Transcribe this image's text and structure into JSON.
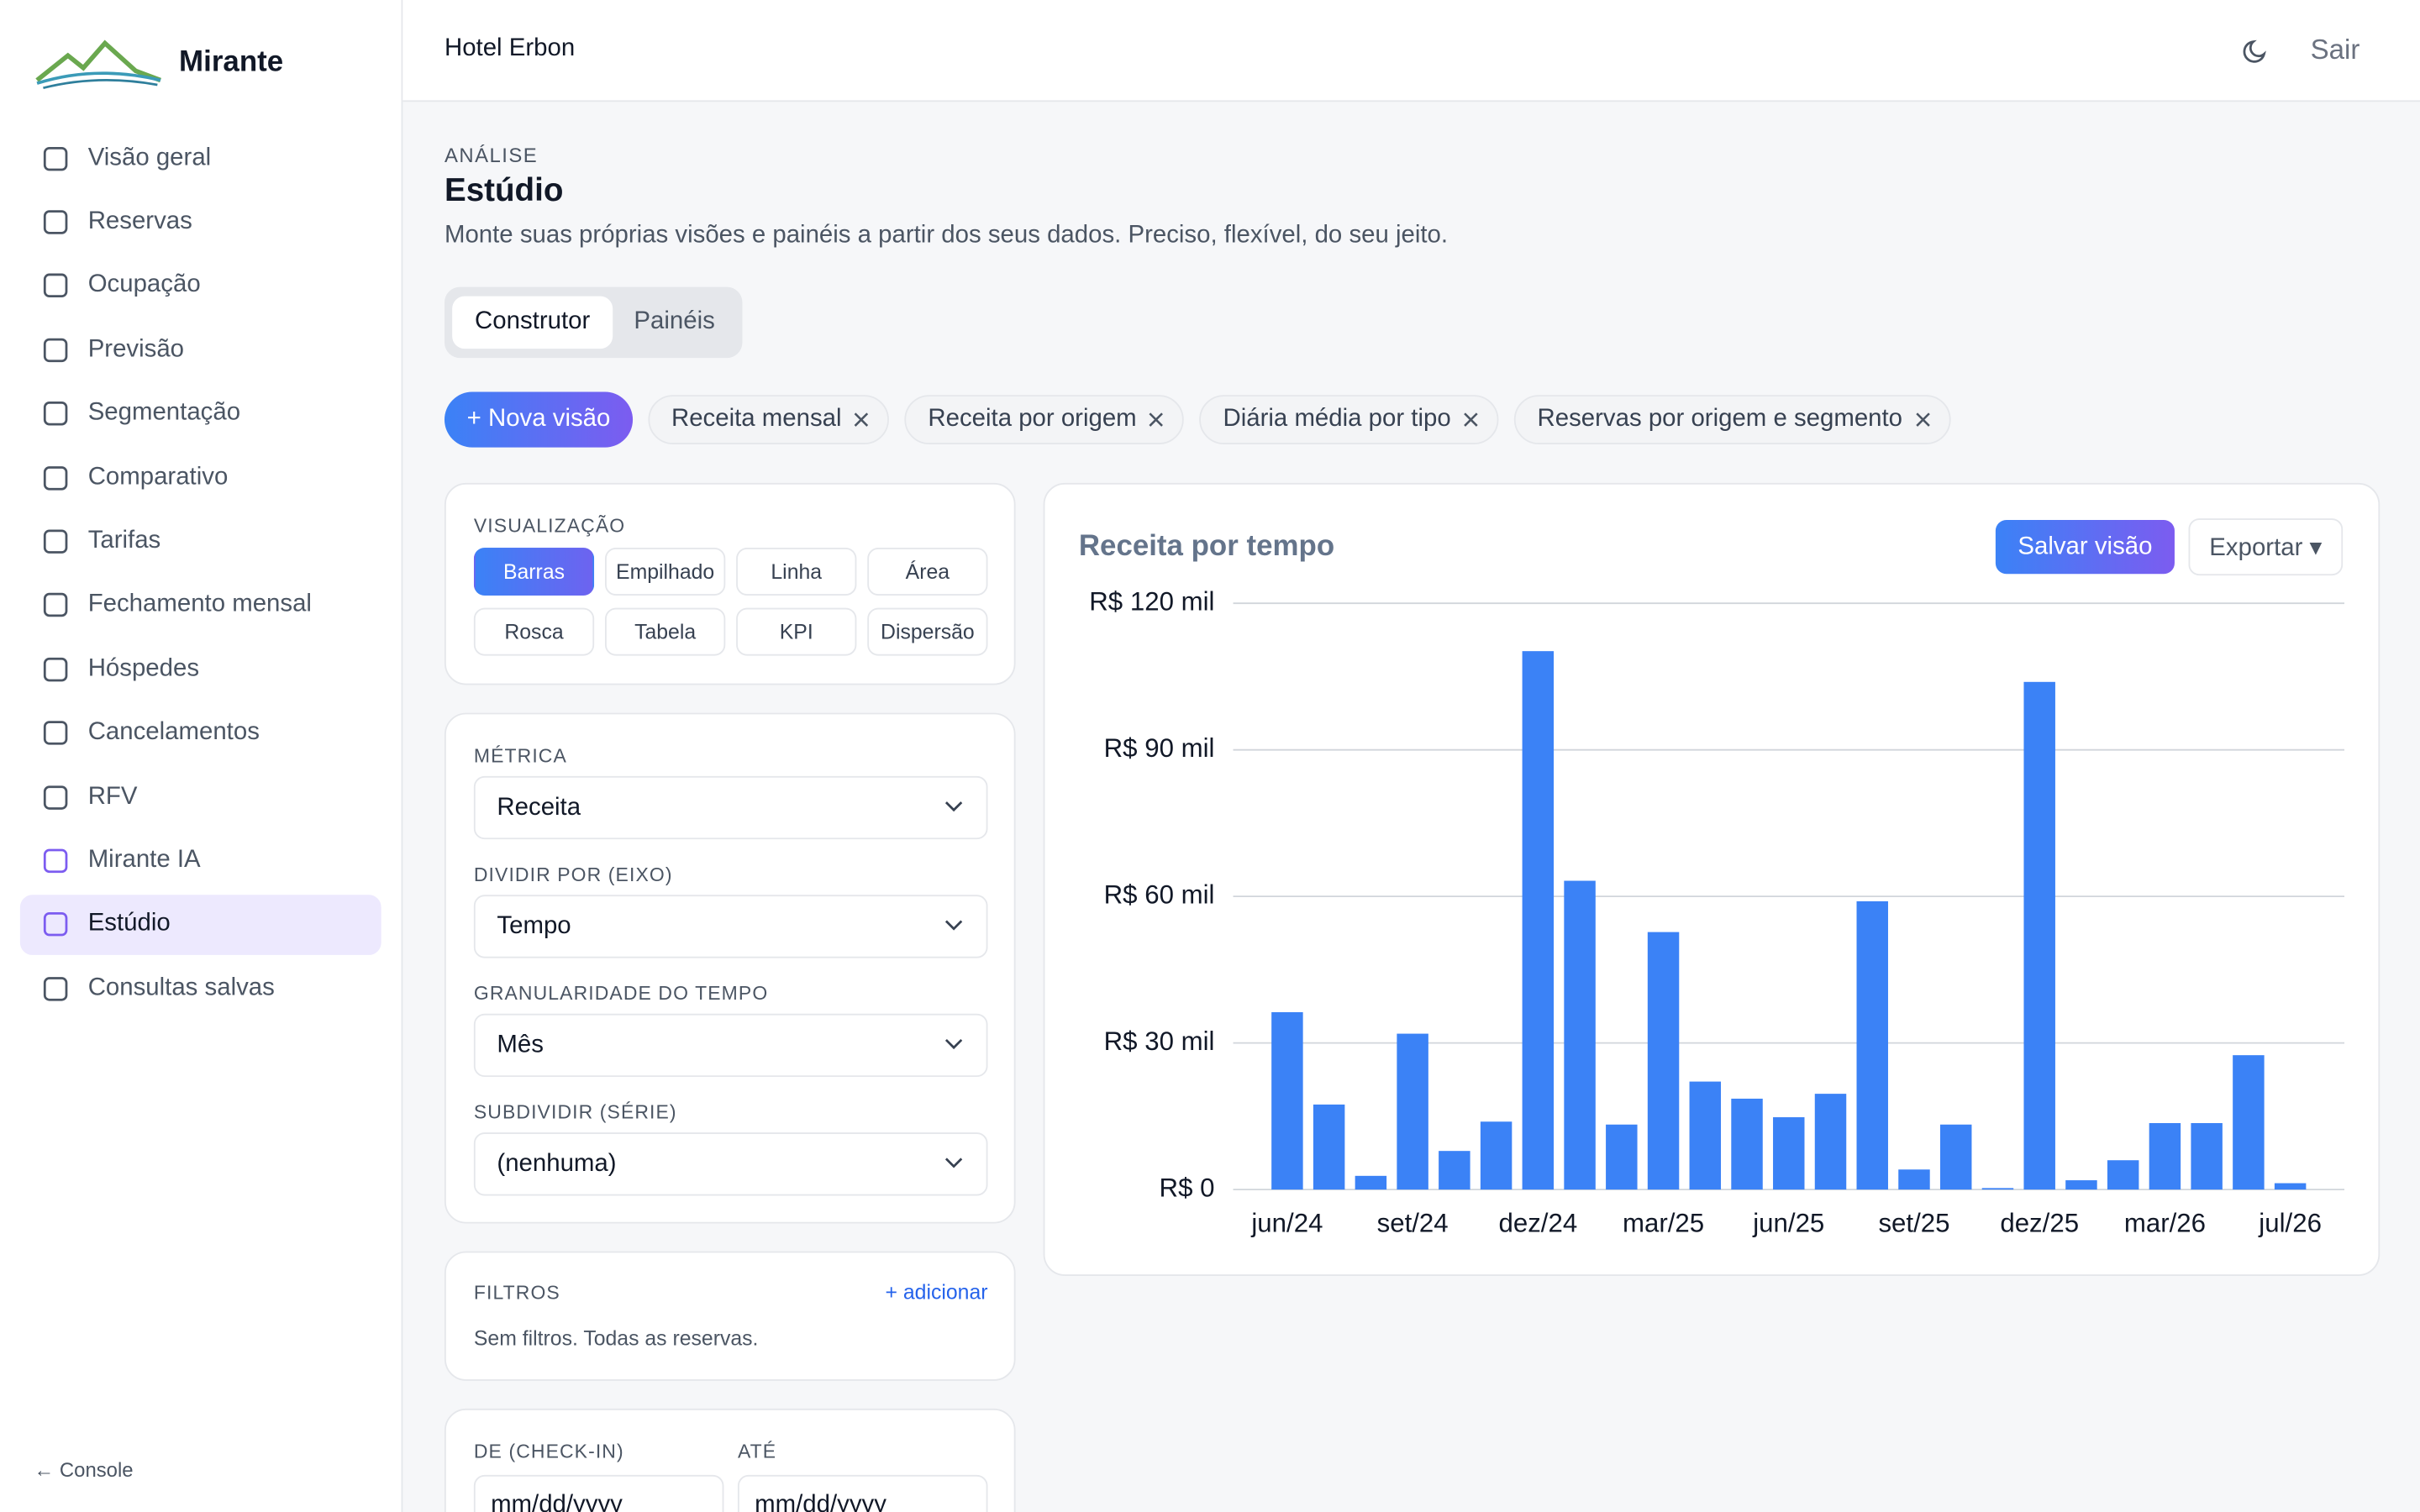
{
  "sidebar": {
    "brand": "Mirante",
    "nav": [
      "Visão geral",
      "Reservas",
      "Ocupação",
      "Previsão",
      "Segmentação",
      "Comparativo",
      "Tarifas",
      "Fechamento mensal",
      "Hóspedes",
      "Cancelamentos",
      "RFV",
      "Mirante IA",
      "Estúdio",
      "Consultas salvas"
    ],
    "footer": "← Console"
  },
  "header": {
    "hotel": "Hotel Erbon",
    "logout": "Sair"
  },
  "page": {
    "eyebrow": "ANÁLISE",
    "title": "Estúdio",
    "description": "Monte suas próprias visões e painéis a partir dos seus dados. Preciso, flexível, do seu jeito."
  },
  "tabs": [
    "Construtor",
    "Painéis"
  ],
  "new_view": "+ Nova visão",
  "saved_views": [
    "Receita mensal",
    "Receita por origem",
    "Diária média por tipo",
    "Reservas por origem e segmento"
  ],
  "visualization": {
    "label": "VISUALIZAÇÃO",
    "options": [
      "Barras",
      "Empilhado",
      "Linha",
      "Área",
      "Rosca",
      "Tabela",
      "KPI",
      "Dispersão"
    ]
  },
  "fields": [
    {
      "label": "MÉTRICA",
      "value": "Receita"
    },
    {
      "label": "DIVIDIR POR (EIXO)",
      "value": "Tempo"
    },
    {
      "label": "GRANULARIDADE DO TEMPO",
      "value": "Mês"
    },
    {
      "label": "SUBDIVIDIR (SÉRIE)",
      "value": "(nenhuma)"
    }
  ],
  "filters": {
    "label": "FILTROS",
    "add": "+ adicionar",
    "empty": "Sem filtros. Todas as reservas."
  },
  "dates": {
    "from_label": "DE (CHECK-IN)",
    "to_label": "ATÉ",
    "from_placeholder": "mm/dd/yyyy",
    "to_placeholder": "mm/dd/yyyy"
  },
  "chart_actions": {
    "save": "Salvar visão",
    "export": "Exportar ▾"
  },
  "chart_data": {
    "type": "bar",
    "title": "Receita por tempo",
    "categories": [
      "jun/24",
      null,
      null,
      "set/24",
      null,
      null,
      "dez/24",
      null,
      null,
      "mar/25",
      null,
      null,
      "jun/25",
      null,
      null,
      "set/25",
      null,
      null,
      "dez/25",
      null,
      null,
      "mar/26",
      null,
      null,
      "jul/26"
    ],
    "values": [
      36.3,
      17.4,
      2.8,
      31.9,
      7.9,
      13.9,
      110.2,
      63.2,
      13.3,
      52.7,
      22.1,
      18.6,
      14.8,
      19.6,
      59.0,
      4.1,
      13.3,
      0.3,
      103.9,
      1.9,
      6.0,
      13.6,
      13.6,
      27.5,
      1.3
    ],
    "color": "#3b82f6",
    "ylim": [
      0,
      120
    ],
    "yticks": [
      {
        "value": 0,
        "label": "R$ 0"
      },
      {
        "value": 30,
        "label": "R$ 30 mil"
      },
      {
        "value": 60,
        "label": "R$ 60 mil"
      },
      {
        "value": 90,
        "label": "R$ 90 mil"
      },
      {
        "value": 120,
        "label": "R$ 120 mil"
      }
    ],
    "grid": true
  }
}
